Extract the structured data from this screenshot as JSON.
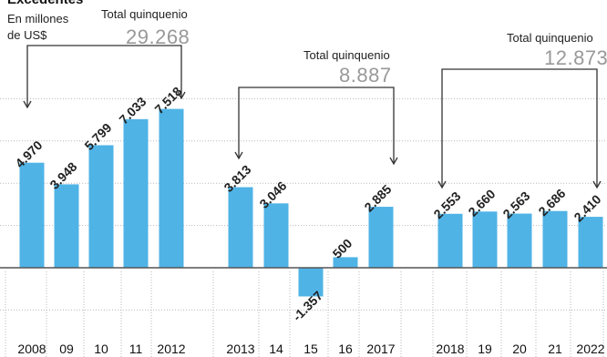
{
  "title": "Excedentes",
  "unit": "En millones de US$",
  "colors": {
    "bar": "#4fb3e6",
    "bracket": "#333333",
    "grid": "#b7b7b7",
    "total": "#999999"
  },
  "quinquennia": [
    {
      "label": "Total quinquenio",
      "value": "29.268"
    },
    {
      "label": "Total quinquenio",
      "value": "8.887"
    },
    {
      "label": "Total quinquenio",
      "value": "12.873"
    }
  ],
  "chart_data": {
    "type": "bar",
    "title": "Excedentes",
    "ylabel": "En millones de US$",
    "ylim": [
      -2000,
      8000
    ],
    "grid": true,
    "categories": [
      "2008",
      "09",
      "10",
      "11",
      "2012",
      "2013",
      "14",
      "15",
      "16",
      "2017",
      "2018",
      "19",
      "20",
      "21",
      "2022"
    ],
    "values": [
      4970,
      3948,
      5799,
      7033,
      7518,
      3813,
      3046,
      -1357,
      500,
      2885,
      2553,
      2660,
      2563,
      2686,
      2410
    ],
    "value_labels": [
      "4.970",
      "3.948",
      "5.799",
      "7.033",
      "7.518",
      "3.813",
      "3.046",
      "-1.357",
      "500",
      "2.885",
      "2.553",
      "2.660",
      "2.563",
      "2.686",
      "2.410"
    ]
  }
}
